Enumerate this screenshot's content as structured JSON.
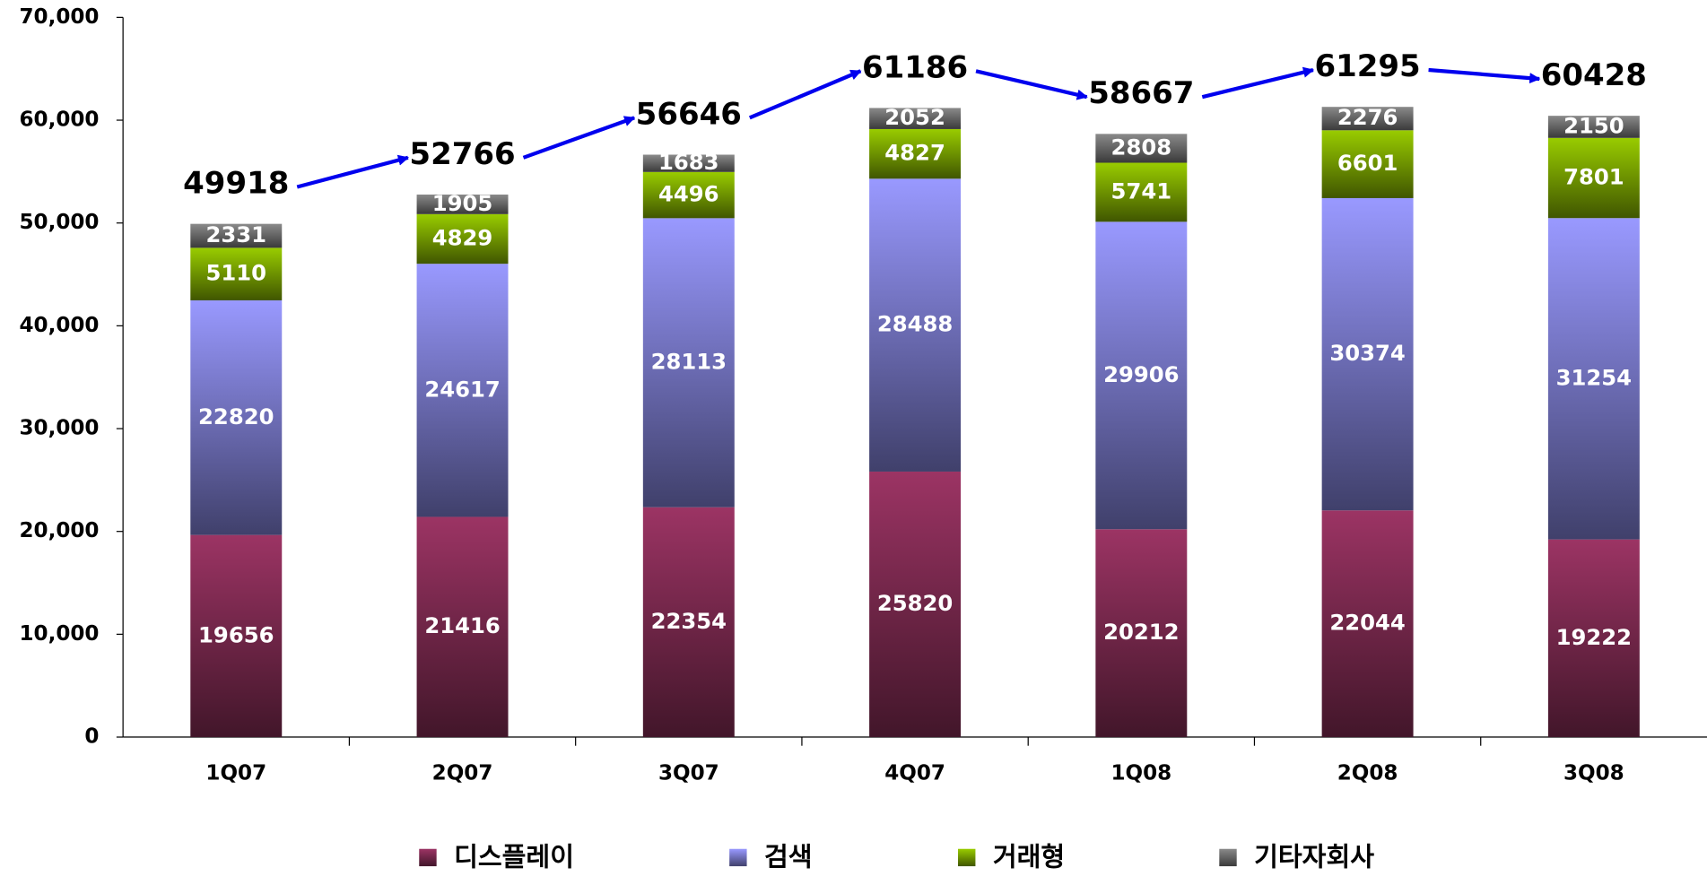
{
  "chart_data": {
    "type": "stacked_bar",
    "categories": [
      "1Q07",
      "2Q07",
      "3Q07",
      "4Q07",
      "1Q08",
      "2Q08",
      "3Q08"
    ],
    "series": [
      {
        "name": "디스플레이",
        "color": "#9c3464",
        "values": [
          19656,
          21416,
          22354,
          25820,
          20212,
          22044,
          19222
        ]
      },
      {
        "name": "검색",
        "color": "#9999ff",
        "values": [
          22820,
          24617,
          28113,
          28488,
          29906,
          30374,
          31254
        ]
      },
      {
        "name": "거래형",
        "color": "#99cc00",
        "values": [
          5110,
          4829,
          4496,
          4827,
          5741,
          6601,
          7801
        ]
      },
      {
        "name": "기타자회사",
        "color": "#8a8a8a",
        "values": [
          2331,
          1905,
          1683,
          2052,
          2808,
          2276,
          2150
        ]
      }
    ],
    "totals": [
      49918,
      52766,
      56646,
      61186,
      58667,
      61295,
      60428
    ],
    "ylim": [
      0,
      70000
    ],
    "yticks": [
      0,
      {
        "value": 10000,
        "label": "10,000"
      },
      {
        "value": 20000,
        "label": "20,000"
      },
      {
        "value": 30000,
        "label": "30,000"
      },
      {
        "value": 40000,
        "label": "40,000"
      },
      {
        "value": 50000,
        "label": "50,000"
      },
      {
        "value": 60000,
        "label": "60,000"
      },
      {
        "value": 70000,
        "label": "70,000"
      }
    ]
  }
}
